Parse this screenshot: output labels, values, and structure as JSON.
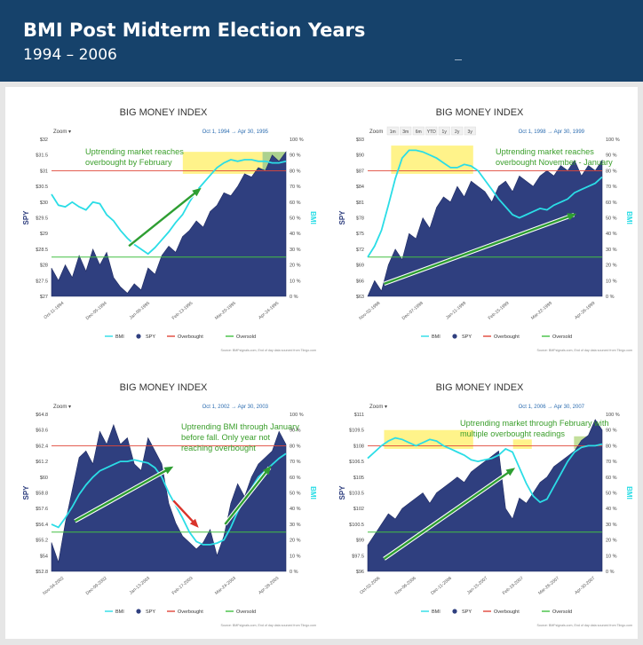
{
  "header": {
    "title": "BMI Post Midterm Election Years",
    "subtitle": "1994 – 2006"
  },
  "chart_data": [
    {
      "type": "area",
      "title": "BIG MONEY INDEX",
      "range_label": "Oct 1, 1994  →  Apr 30, 1995",
      "zoom_label": "Zoom ▾",
      "range_buttons": [],
      "ylabel": "SPY",
      "y2label": "BMI",
      "y_ticks": [
        "$32",
        "$31.5",
        "$31",
        "$30.5",
        "$30",
        "$29.5",
        "$29",
        "$28.5",
        "$28",
        "$27.5",
        "$27"
      ],
      "ylim": [
        27,
        32
      ],
      "y2lim": [
        0,
        100
      ],
      "y2_ticks": [
        "100 %",
        "90 %",
        "80 %",
        "70 %",
        "60 %",
        "50 %",
        "40 %",
        "30 %",
        "20 %",
        "10 %",
        "0 %"
      ],
      "x_ticks": [
        "Oct-11-1994",
        "Dec-05-1994",
        "Jan-09-1995",
        "Feb-13-1995",
        "Mar-20-1995",
        "Apr-24-1995"
      ],
      "overbought": 80,
      "oversold": 25,
      "spy": [
        27.9,
        27.5,
        28.0,
        27.6,
        28.3,
        27.8,
        28.5,
        28.0,
        28.4,
        27.6,
        27.3,
        27.1,
        27.4,
        27.2,
        27.9,
        27.7,
        28.3,
        28.6,
        28.4,
        28.9,
        29.1,
        29.4,
        29.2,
        29.7,
        29.9,
        30.3,
        30.2,
        30.5,
        30.9,
        30.8,
        31.1,
        31.0,
        31.5,
        31.3,
        31.6
      ],
      "bmi": [
        65,
        58,
        57,
        60,
        57,
        55,
        60,
        59,
        52,
        48,
        42,
        37,
        33,
        30,
        27,
        31,
        36,
        41,
        47,
        52,
        60,
        67,
        72,
        77,
        82,
        85,
        87,
        86,
        87,
        87,
        86,
        86,
        85,
        85,
        86
      ],
      "annotations": [
        {
          "text": "Uptrending market reaches overbought by February"
        }
      ],
      "highlights": [
        {
          "from": 0.56,
          "to": 0.9,
          "y_from": 78,
          "y_to": 92,
          "color": "#fff176"
        },
        {
          "from": 0.9,
          "to": 1.0,
          "y_from": 78,
          "y_to": 92,
          "color": "#9ec97a"
        }
      ],
      "arrows": [
        {
          "x1": 0.33,
          "y1": 32,
          "x2": 0.63,
          "y2": 68,
          "color": "#2e9e32"
        }
      ],
      "legend": [
        "BMI",
        "SPY",
        "Overbought",
        "Oversold"
      ],
      "source": "Source: BMFsignals.com, End of day data sourced from Tiingo.com"
    },
    {
      "type": "area",
      "title": "BIG MONEY INDEX",
      "range_label": "Oct 1, 1998  →  Apr 30, 1999",
      "zoom_label": "Zoom",
      "range_buttons": [
        "1m",
        "3m",
        "6m",
        "YTD",
        "1y",
        "2y",
        "3y"
      ],
      "ylabel": "SPY",
      "y2label": "BMI",
      "y_ticks": [
        "$93",
        "$90",
        "$87",
        "$84",
        "$81",
        "$78",
        "$75",
        "$72",
        "$69",
        "$66",
        "$63"
      ],
      "ylim": [
        63,
        93
      ],
      "y2lim": [
        0,
        100
      ],
      "y2_ticks": [
        "100 %",
        "90 %",
        "80 %",
        "70 %",
        "60 %",
        "50 %",
        "40 %",
        "30 %",
        "20 %",
        "10 %",
        "0 %"
      ],
      "x_ticks": [
        "Nov-02-1998",
        "Dec-07-1998",
        "Jan-11-1999",
        "Feb-15-1999",
        "Mar-22-1999",
        "Apr-26-1999"
      ],
      "overbought": 80,
      "oversold": 25,
      "spy": [
        63,
        66,
        64,
        69,
        72,
        70,
        75,
        74,
        78,
        76,
        80,
        82,
        81,
        84,
        82,
        85,
        84,
        83,
        81,
        84,
        85,
        83,
        86,
        85,
        84,
        86,
        87,
        86,
        88,
        87,
        89,
        86,
        88,
        87,
        89
      ],
      "bmi": [
        25,
        32,
        42,
        58,
        75,
        88,
        93,
        93,
        92,
        90,
        88,
        85,
        82,
        82,
        84,
        83,
        80,
        74,
        68,
        62,
        57,
        52,
        50,
        52,
        54,
        56,
        55,
        58,
        60,
        62,
        66,
        68,
        70,
        72,
        76
      ],
      "annotations": [
        {
          "text": "Uptrending market reaches overbought November - January"
        }
      ],
      "highlights": [
        {
          "from": 0.1,
          "to": 0.45,
          "y_from": 78,
          "y_to": 96,
          "color": "#fff176"
        }
      ],
      "arrows": [
        {
          "x1": 0.07,
          "y1": 8,
          "x2": 0.88,
          "y2": 52,
          "color": "#2e9e32"
        }
      ],
      "legend": [
        "BMI",
        "SPY",
        "Overbought",
        "Oversold"
      ],
      "source": "Source: BMFsignals.com, End of day data sourced from Tiingo.com"
    },
    {
      "type": "area",
      "title": "BIG MONEY INDEX",
      "range_label": "Oct 1, 2002  →  Apr 30, 2003",
      "zoom_label": "Zoom ▾",
      "range_buttons": [],
      "ylabel": "SPY",
      "y2label": "BMI",
      "y_ticks": [
        "$64.8",
        "$63.6",
        "$62.4",
        "$61.2",
        "$60",
        "$58.8",
        "$57.6",
        "$56.4",
        "$55.2",
        "$54",
        "$52.8"
      ],
      "ylim": [
        52.8,
        64.8
      ],
      "y2lim": [
        0,
        100
      ],
      "y2_ticks": [
        "100 %",
        "90 %",
        "80 %",
        "70 %",
        "60 %",
        "50 %",
        "40 %",
        "30 %",
        "20 %",
        "10 %",
        "0 %"
      ],
      "x_ticks": [
        "Nov-04-2002",
        "Dec-09-2002",
        "Jan-13-2003",
        "Feb-17-2003",
        "Mar-24-2003",
        "Apr-28-2003"
      ],
      "overbought": 80,
      "oversold": 25,
      "spy": [
        55,
        53.5,
        56.5,
        59,
        61.5,
        62,
        61,
        63.5,
        62.5,
        64,
        62.5,
        63,
        61,
        60.5,
        63,
        62,
        61,
        58,
        56.5,
        55.5,
        55,
        54.5,
        55,
        56,
        54,
        55.5,
        58,
        59.5,
        58.5,
        60,
        61,
        61.5,
        62,
        63.5,
        62.5
      ],
      "bmi": [
        30,
        28,
        34,
        41,
        49,
        55,
        60,
        64,
        66,
        68,
        70,
        70,
        71,
        70,
        69,
        66,
        60,
        50,
        42,
        34,
        25,
        19,
        17,
        17,
        18,
        20,
        28,
        38,
        46,
        53,
        60,
        64,
        68,
        72,
        75
      ],
      "annotations": [
        {
          "text": "Uptrending BMI through January before fall. Only year not reaching overbought"
        }
      ],
      "highlights": [],
      "arrows": [
        {
          "x1": 0.1,
          "y1": 32,
          "x2": 0.51,
          "y2": 66,
          "color": "#2e9e32"
        },
        {
          "x1": 0.52,
          "y1": 45,
          "x2": 0.62,
          "y2": 29,
          "color": "#d9342b"
        },
        {
          "x1": 0.74,
          "y1": 30,
          "x2": 0.93,
          "y2": 66,
          "color": "#2e9e32"
        }
      ],
      "legend": [
        "BMI",
        "SPY",
        "Overbought",
        "Oversold"
      ],
      "source": "Source: BMFsignals.com, End of day data sourced from Tiingo.com"
    },
    {
      "type": "area",
      "title": "BIG MONEY INDEX",
      "range_label": "Oct 1, 2006  →  Apr 30, 2007",
      "zoom_label": "Zoom ▾",
      "range_buttons": [],
      "ylabel": "SPY",
      "y2label": "BMI",
      "y_ticks": [
        "$111",
        "$109.5",
        "$108",
        "$106.5",
        "$105",
        "$103.5",
        "$102",
        "$100.5",
        "$99",
        "$97.5",
        "$96"
      ],
      "ylim": [
        96,
        111
      ],
      "y2lim": [
        0,
        100
      ],
      "y2_ticks": [
        "100 %",
        "90 %",
        "80 %",
        "70 %",
        "60 %",
        "50 %",
        "40 %",
        "30 %",
        "20 %",
        "10 %",
        "0 %"
      ],
      "x_ticks": [
        "Oct-02-2006",
        "Nov-06-2006",
        "Dec-11-2006",
        "Jan-15-2007",
        "Feb-19-2007",
        "Mar-26-2007",
        "Apr-30-2007"
      ],
      "overbought": 80,
      "oversold": 25,
      "spy": [
        98.5,
        99.5,
        100.5,
        101.5,
        101,
        102,
        102.5,
        103,
        103.5,
        102.5,
        103.5,
        104,
        104.5,
        105,
        104.5,
        105.5,
        106,
        106.5,
        107,
        107.5,
        102,
        101,
        103,
        102.5,
        103.5,
        104.5,
        105,
        106,
        106.5,
        107,
        107.5,
        108.5,
        109,
        110.5,
        109.5
      ],
      "bmi": [
        72,
        76,
        80,
        83,
        85,
        84,
        82,
        80,
        82,
        84,
        83,
        80,
        78,
        76,
        74,
        71,
        70,
        71,
        72,
        74,
        78,
        76,
        66,
        56,
        48,
        44,
        46,
        54,
        62,
        70,
        76,
        79,
        80,
        80,
        81
      ],
      "annotations": [
        {
          "text": "Uptrending market through February with multiple overbought readings"
        }
      ],
      "highlights": [
        {
          "from": 0.07,
          "to": 0.45,
          "y_from": 78,
          "y_to": 90,
          "color": "#fff176"
        },
        {
          "from": 0.62,
          "to": 0.7,
          "y_from": 78,
          "y_to": 84,
          "color": "#fff176"
        },
        {
          "from": 0.88,
          "to": 1.0,
          "y_from": 78,
          "y_to": 86,
          "color": "#b9d98a"
        }
      ],
      "arrows": [
        {
          "x1": 0.07,
          "y1": 8,
          "x2": 0.62,
          "y2": 65,
          "color": "#2e9e32"
        }
      ],
      "legend": [
        "BMI",
        "SPY",
        "Overbought",
        "Oversold"
      ],
      "source": "Source: BMFsignals.com, End of day data sourced from Tiingo.com"
    }
  ]
}
